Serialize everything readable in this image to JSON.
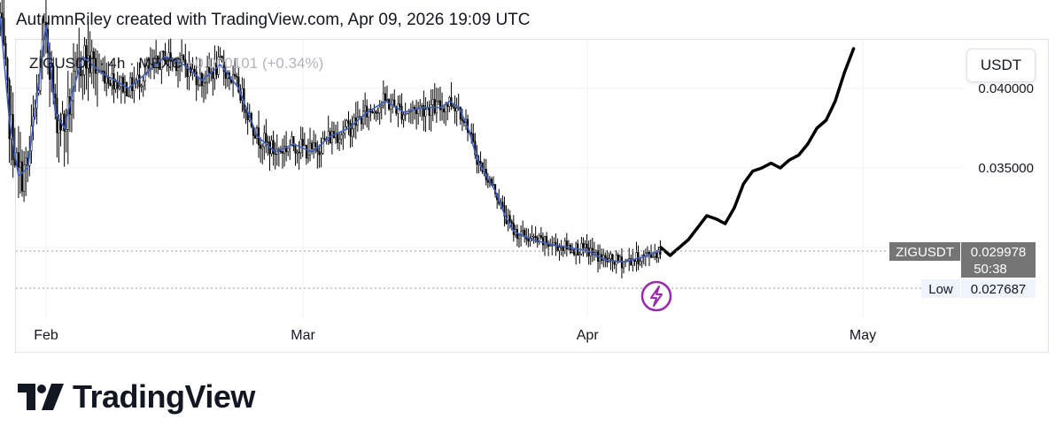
{
  "header": {
    "attribution": "AutumnRiley created with TradingView.com, Apr 09, 2026 19:09 UTC"
  },
  "legend": {
    "symbol": "ZIGUSDT · 4h · MEXC",
    "change": "+0.000101 (+0.34%)"
  },
  "currency_button": "USDT",
  "price_label": {
    "symbol": "ZIGUSDT",
    "price": "0.029978",
    "countdown": "50:38"
  },
  "low_label": {
    "label": "Low",
    "value": "0.027687"
  },
  "branding": {
    "name": "TradingView"
  },
  "colors": {
    "up": "#ffffff",
    "down": "#000000",
    "ma": "#3d5fc4",
    "projection": "#000000",
    "lightning": "#9c27b0"
  },
  "chart_data": {
    "type": "candlestick",
    "symbol": "ZIGUSDT",
    "interval": "4h",
    "exchange": "MEXC",
    "y_ticks": [
      0.035
    ],
    "y_partial_tick": "0.040000",
    "x_ticks": [
      "Feb",
      "Mar",
      "Apr",
      "May"
    ],
    "last_price": 0.029978,
    "low": 0.027687,
    "close_path": [
      [
        "2026-01-27",
        0.0445
      ],
      [
        "2026-01-28",
        0.038
      ],
      [
        "2026-01-29",
        0.0345
      ],
      [
        "2026-01-30",
        0.035
      ],
      [
        "2026-02-01",
        0.044
      ],
      [
        "2026-02-02",
        0.0385
      ],
      [
        "2026-02-03",
        0.0375
      ],
      [
        "2026-02-04",
        0.04
      ],
      [
        "2026-02-05",
        0.042
      ],
      [
        "2026-02-07",
        0.041
      ],
      [
        "2026-02-10",
        0.04
      ],
      [
        "2026-02-12",
        0.041
      ],
      [
        "2026-02-14",
        0.042
      ],
      [
        "2026-02-16",
        0.0415
      ],
      [
        "2026-02-18",
        0.0405
      ],
      [
        "2026-02-20",
        0.0415
      ],
      [
        "2026-02-22",
        0.04
      ],
      [
        "2026-02-24",
        0.037
      ],
      [
        "2026-02-26",
        0.036
      ],
      [
        "2026-02-28",
        0.0365
      ],
      [
        "2026-03-02",
        0.036
      ],
      [
        "2026-03-04",
        0.037
      ],
      [
        "2026-03-06",
        0.0375
      ],
      [
        "2026-03-08",
        0.0385
      ],
      [
        "2026-03-10",
        0.0392
      ],
      [
        "2026-03-12",
        0.0385
      ],
      [
        "2026-03-14",
        0.0388
      ],
      [
        "2026-03-16",
        0.0388
      ],
      [
        "2026-03-17",
        0.0392
      ],
      [
        "2026-03-18",
        0.0388
      ],
      [
        "2026-03-19",
        0.0375
      ],
      [
        "2026-03-20",
        0.0355
      ],
      [
        "2026-03-21",
        0.0345
      ],
      [
        "2026-03-22",
        0.0335
      ],
      [
        "2026-03-23",
        0.032
      ],
      [
        "2026-03-24",
        0.031
      ],
      [
        "2026-03-26",
        0.0305
      ],
      [
        "2026-03-28",
        0.0302
      ],
      [
        "2026-03-30",
        0.03
      ],
      [
        "2026-04-01",
        0.0298
      ],
      [
        "2026-04-03",
        0.0292
      ],
      [
        "2026-04-05",
        0.0291
      ],
      [
        "2026-04-07",
        0.0294
      ],
      [
        "2026-04-09",
        0.0298
      ]
    ],
    "projection_path": [
      [
        "2026-04-09",
        0.03
      ],
      [
        "2026-04-10",
        0.0295
      ],
      [
        "2026-04-12",
        0.0305
      ],
      [
        "2026-04-14",
        0.032
      ],
      [
        "2026-04-15",
        0.0318
      ],
      [
        "2026-04-16",
        0.0315
      ],
      [
        "2026-04-17",
        0.0325
      ],
      [
        "2026-04-18",
        0.034
      ],
      [
        "2026-04-19",
        0.0348
      ],
      [
        "2026-04-20",
        0.035
      ],
      [
        "2026-04-21",
        0.0353
      ],
      [
        "2026-04-22",
        0.035
      ],
      [
        "2026-04-23",
        0.0355
      ],
      [
        "2026-04-24",
        0.0358
      ],
      [
        "2026-04-25",
        0.0365
      ],
      [
        "2026-04-26",
        0.0375
      ],
      [
        "2026-04-27",
        0.038
      ],
      [
        "2026-04-28",
        0.0392
      ],
      [
        "2026-04-29",
        0.041
      ],
      [
        "2026-04-30",
        0.0425
      ]
    ]
  }
}
